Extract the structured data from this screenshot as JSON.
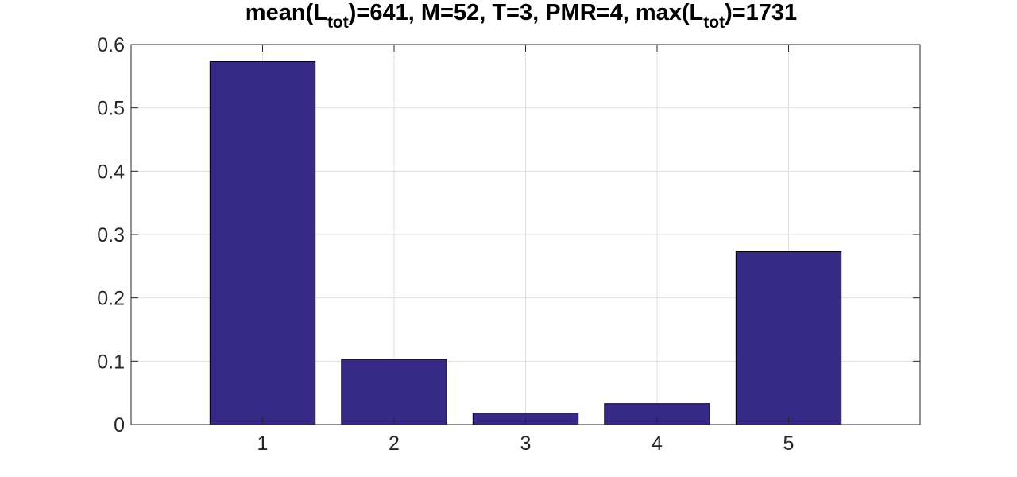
{
  "chart_data": {
    "type": "bar",
    "title": {
      "parts": [
        {
          "text": "mean(L"
        },
        {
          "text": "tot",
          "sub": true
        },
        {
          "text": ")=641, M=52, T=3, PMR=4, max(L"
        },
        {
          "text": "tot",
          "sub": true
        },
        {
          "text": ")=1731"
        }
      ]
    },
    "xlabel": "",
    "ylabel": "",
    "categories": [
      "1",
      "2",
      "3",
      "4",
      "5"
    ],
    "values": [
      0.573,
      0.103,
      0.018,
      0.033,
      0.273
    ],
    "xlim": [
      0,
      6
    ],
    "ylim": [
      0,
      0.6
    ],
    "yticks": [
      0,
      0.1,
      0.2,
      0.3,
      0.4,
      0.5,
      0.6
    ],
    "ytick_labels": [
      "0",
      "0.1",
      "0.2",
      "0.3",
      "0.4",
      "0.5",
      "0.6"
    ],
    "grid": true,
    "bar_color": "#372a86",
    "bar_edge_color": "#000000",
    "grid_color": "#dfdfdf",
    "axis_color": "#262626"
  }
}
